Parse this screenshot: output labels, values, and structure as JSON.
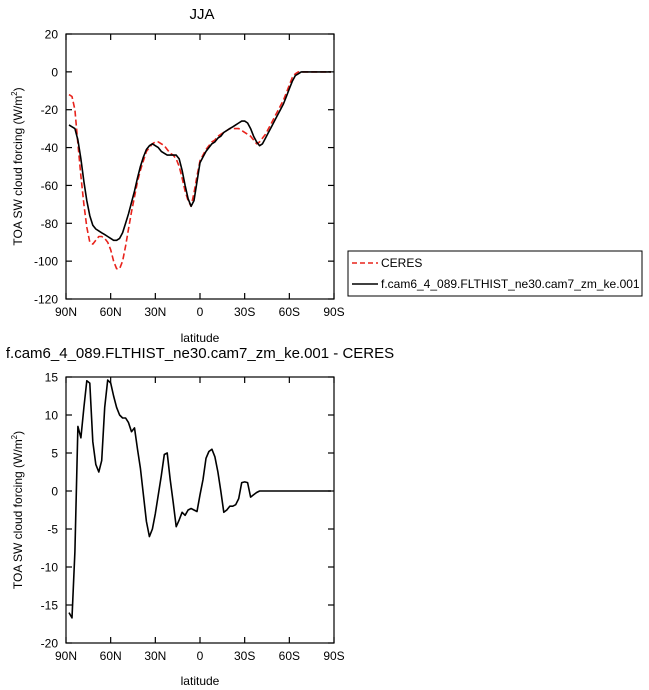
{
  "chart_data": [
    {
      "type": "line",
      "title": "JJA",
      "xlabel": "latitude",
      "ylabel": "TOA SW cloud forcing (W/m²)",
      "ylabel_main": "TOA SW cloud forcing (W/m",
      "ylabel_sup": "2",
      "ylabel_end": ")",
      "xlim": [
        90,
        -90
      ],
      "ylim": [
        -120,
        20
      ],
      "x_ticks": [
        90,
        60,
        30,
        0,
        -30,
        -60,
        -90
      ],
      "x_tick_labels": [
        "90N",
        "60N",
        "30N",
        "0",
        "30S",
        "60S",
        "90S"
      ],
      "y_ticks": [
        20,
        0,
        -20,
        -40,
        -60,
        -80,
        -100,
        -120
      ],
      "y_tick_labels": [
        "20",
        "0",
        "-20",
        "-40",
        "-60",
        "-80",
        "-100",
        "-120"
      ],
      "legend_position": "outside-right",
      "series": [
        {
          "name": "CERES",
          "color": "#e8231c",
          "dash": "dashed",
          "x": [
            88,
            86,
            84,
            82,
            80,
            78,
            76,
            74,
            72,
            70,
            68,
            66,
            64,
            62,
            60,
            58,
            56,
            54,
            52,
            50,
            48,
            46,
            44,
            42,
            40,
            38,
            36,
            34,
            32,
            30,
            28,
            26,
            24,
            22,
            20,
            18,
            16,
            14,
            12,
            10,
            8,
            6,
            4,
            2,
            0,
            -2,
            -4,
            -6,
            -8,
            -10,
            -12,
            -14,
            -16,
            -18,
            -20,
            -22,
            -24,
            -26,
            -28,
            -30,
            -32,
            -34,
            -36,
            -38,
            -40,
            -42,
            -44,
            -46,
            -48,
            -50,
            -52,
            -54,
            -56,
            -58,
            -60,
            -62,
            -64,
            -66,
            -68,
            -70,
            -72,
            -74,
            -76,
            -78,
            -80,
            -82,
            -84,
            -86,
            -88
          ],
          "y": [
            -12,
            -13,
            -20,
            -38,
            -55,
            -70,
            -82,
            -90,
            -91,
            -89,
            -87,
            -87,
            -88,
            -90,
            -94,
            -100,
            -104,
            -104,
            -100,
            -92,
            -83,
            -74,
            -66,
            -58,
            -52,
            -47,
            -42,
            -40,
            -38,
            -37,
            -37,
            -38,
            -39,
            -41,
            -43,
            -44,
            -46,
            -50,
            -56,
            -63,
            -68,
            -71,
            -64,
            -55,
            -47,
            -44,
            -41,
            -39,
            -37,
            -36,
            -34,
            -33,
            -32,
            -31,
            -30,
            -30,
            -30,
            -30,
            -31,
            -32,
            -33,
            -34,
            -36,
            -38,
            -37,
            -35,
            -33,
            -30,
            -27,
            -24,
            -21,
            -18,
            -15,
            -11,
            -7,
            -3,
            -1,
            0,
            0,
            0,
            0,
            0,
            0,
            0,
            0,
            0,
            0,
            0,
            0
          ]
        },
        {
          "name": "f.cam6_4_089.FLTHIST_ne30.cam7_zm_ke.001",
          "color": "#000000",
          "dash": "solid",
          "x": [
            88,
            86,
            84,
            82,
            80,
            78,
            76,
            74,
            72,
            70,
            68,
            66,
            64,
            62,
            60,
            58,
            56,
            54,
            52,
            50,
            48,
            46,
            44,
            42,
            40,
            38,
            36,
            34,
            32,
            30,
            28,
            26,
            24,
            22,
            20,
            18,
            16,
            14,
            12,
            10,
            8,
            6,
            4,
            2,
            0,
            -2,
            -4,
            -6,
            -8,
            -10,
            -12,
            -14,
            -16,
            -18,
            -20,
            -22,
            -24,
            -26,
            -28,
            -30,
            -32,
            -34,
            -36,
            -38,
            -40,
            -42,
            -44,
            -46,
            -48,
            -50,
            -52,
            -54,
            -56,
            -58,
            -60,
            -62,
            -64,
            -66,
            -68,
            -70,
            -72,
            -74,
            -76,
            -78,
            -80,
            -82,
            -84,
            -86,
            -88
          ],
          "y": [
            -28,
            -29,
            -30,
            -36,
            -46,
            -58,
            -68,
            -76,
            -81,
            -83,
            -84,
            -85,
            -86,
            -87,
            -88,
            -89,
            -89,
            -88,
            -85,
            -80,
            -75,
            -69,
            -63,
            -56,
            -50,
            -45,
            -41,
            -39,
            -38,
            -39,
            -40,
            -42,
            -43,
            -44,
            -44,
            -44,
            -44,
            -46,
            -52,
            -60,
            -67,
            -71,
            -68,
            -58,
            -48,
            -45,
            -42,
            -40,
            -38,
            -37,
            -35,
            -34,
            -32,
            -31,
            -30,
            -29,
            -28,
            -27,
            -26,
            -26,
            -27,
            -30,
            -34,
            -37,
            -39,
            -38,
            -35,
            -32,
            -29,
            -26,
            -23,
            -20,
            -17,
            -13,
            -9,
            -5,
            -2,
            -1,
            0,
            0,
            0,
            0,
            0,
            0,
            0,
            0,
            0,
            0,
            0
          ]
        }
      ]
    },
    {
      "type": "line",
      "title": "f.cam6_4_089.FLTHIST_ne30.cam7_zm_ke.001 - CERES",
      "xlabel": "latitude",
      "ylabel": "TOA SW cloud forcing (W/m²)",
      "ylabel_main": "TOA SW cloud forcing (W/m",
      "ylabel_sup": "2",
      "ylabel_end": ")",
      "xlim": [
        90,
        -90
      ],
      "ylim": [
        -20,
        15
      ],
      "x_ticks": [
        90,
        60,
        30,
        0,
        -30,
        -60,
        -90
      ],
      "x_tick_labels": [
        "90N",
        "60N",
        "30N",
        "0",
        "30S",
        "60S",
        "90S"
      ],
      "y_ticks": [
        15,
        10,
        5,
        0,
        -5,
        -10,
        -15,
        -20
      ],
      "y_tick_labels": [
        "15",
        "10",
        "5",
        "0",
        "-5",
        "-10",
        "-15",
        "-20"
      ],
      "series": [
        {
          "color": "#000000",
          "dash": "solid",
          "x": [
            88,
            86,
            84,
            82,
            80,
            78,
            76,
            74,
            72,
            70,
            68,
            66,
            64,
            62,
            60,
            58,
            56,
            54,
            52,
            50,
            48,
            46,
            44,
            42,
            40,
            38,
            36,
            34,
            32,
            30,
            28,
            26,
            24,
            22,
            20,
            18,
            16,
            14,
            12,
            10,
            8,
            6,
            4,
            2,
            0,
            -2,
            -4,
            -6,
            -8,
            -10,
            -12,
            -14,
            -16,
            -18,
            -20,
            -22,
            -24,
            -26,
            -28,
            -30,
            -32,
            -34,
            -36,
            -38,
            -40,
            -42,
            -44,
            -46,
            -48,
            -50,
            -52,
            -54,
            -56,
            -58,
            -60,
            -62,
            -64,
            -66,
            -68,
            -70,
            -72,
            -74,
            -76,
            -78,
            -80,
            -82,
            -84,
            -86,
            -88
          ],
          "y": [
            -16,
            -16.7,
            -8,
            8.5,
            7,
            11,
            14.5,
            14.2,
            6.5,
            3.5,
            2.5,
            4,
            11,
            14.6,
            14.2,
            12.5,
            11,
            10,
            9.6,
            9.6,
            9,
            7.8,
            8.3,
            5.5,
            3,
            -0.5,
            -4,
            -6,
            -5,
            -3,
            -0.5,
            2,
            4.8,
            5,
            1.5,
            -1.5,
            -4.7,
            -3.8,
            -2.8,
            -3.2,
            -2.5,
            -2.3,
            -2.5,
            -2.7,
            -0.5,
            1.5,
            4.3,
            5.2,
            5.5,
            4.5,
            2.5,
            0,
            -2.8,
            -2.5,
            -2,
            -2,
            -1.8,
            -1,
            1.1,
            1.2,
            1.1,
            -0.8,
            -0.5,
            -0.2,
            0,
            0,
            0,
            0,
            0,
            0,
            0,
            0,
            0,
            0,
            0,
            0,
            0,
            0,
            0,
            0,
            0,
            0,
            0,
            0,
            0,
            0,
            0,
            0,
            0
          ]
        }
      ]
    }
  ]
}
